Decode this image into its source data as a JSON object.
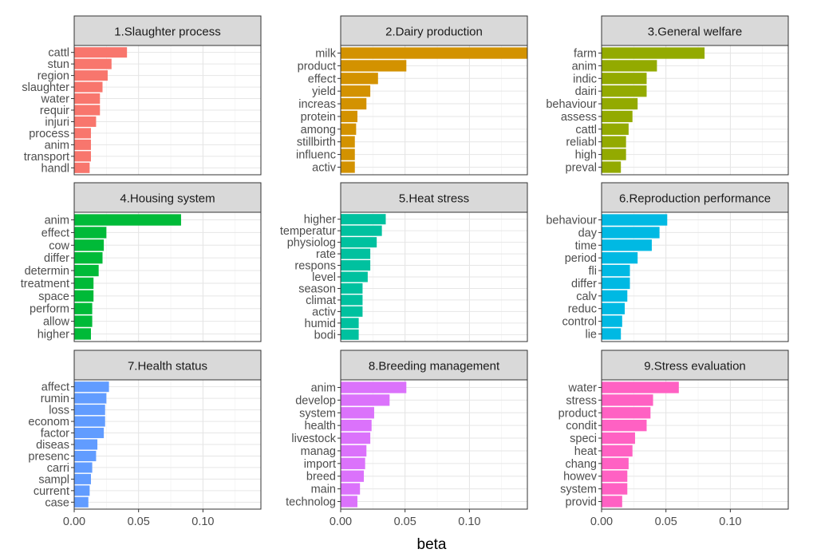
{
  "chart_data": {
    "type": "bar",
    "orientation": "horizontal",
    "layout": "facet-grid 3x3",
    "xlabel": "beta",
    "xlim": [
      0,
      0.145
    ],
    "xticks": [
      0,
      0.05,
      0.1
    ],
    "xtick_labels": [
      "0.00",
      "0.05",
      "0.10"
    ],
    "grid": true,
    "facets": [
      {
        "title": "1.Slaughter process",
        "color": "#F8766D",
        "terms": [
          "cattl",
          "stun",
          "region",
          "slaughter",
          "water",
          "requir",
          "injuri",
          "process",
          "anim",
          "transport",
          "handl"
        ],
        "values": [
          0.041,
          0.029,
          0.026,
          0.022,
          0.02,
          0.02,
          0.017,
          0.013,
          0.013,
          0.013,
          0.012
        ]
      },
      {
        "title": "2.Dairy production",
        "color": "#D39200",
        "terms": [
          "milk",
          "product",
          "effect",
          "yield",
          "increas",
          "protein",
          "among",
          "stillbirth",
          "influenc",
          "activ"
        ],
        "values": [
          0.145,
          0.051,
          0.029,
          0.023,
          0.02,
          0.013,
          0.012,
          0.011,
          0.011,
          0.011
        ]
      },
      {
        "title": "3.General welfare",
        "color": "#93AA00",
        "terms": [
          "farm",
          "anim",
          "indic",
          "dairi",
          "behaviour",
          "assess",
          "cattl",
          "reliabl",
          "high",
          "preval"
        ],
        "values": [
          0.08,
          0.043,
          0.035,
          0.035,
          0.028,
          0.024,
          0.021,
          0.019,
          0.019,
          0.015
        ]
      },
      {
        "title": "4.Housing system",
        "color": "#00BA38",
        "terms": [
          "anim",
          "effect",
          "cow",
          "differ",
          "determin",
          "treatment",
          "space",
          "perform",
          "allow",
          "higher"
        ],
        "values": [
          0.083,
          0.025,
          0.023,
          0.022,
          0.019,
          0.015,
          0.015,
          0.014,
          0.014,
          0.013
        ]
      },
      {
        "title": "5.Heat stress",
        "color": "#00C19F",
        "terms": [
          "higher",
          "temperatur",
          "physiolog",
          "rate",
          "respons",
          "level",
          "season",
          "climat",
          "activ",
          "humid",
          "bodi"
        ],
        "values": [
          0.035,
          0.032,
          0.028,
          0.023,
          0.023,
          0.021,
          0.017,
          0.017,
          0.017,
          0.014,
          0.014
        ]
      },
      {
        "title": "6.Reproduction performance",
        "color": "#00B9E3",
        "terms": [
          "behaviour",
          "day",
          "time",
          "period",
          "fli",
          "differ",
          "calv",
          "reduc",
          "control",
          "lie"
        ],
        "values": [
          0.051,
          0.045,
          0.039,
          0.028,
          0.022,
          0.022,
          0.02,
          0.018,
          0.016,
          0.015
        ]
      },
      {
        "title": "7.Health status",
        "color": "#619CFF",
        "terms": [
          "affect",
          "rumin",
          "loss",
          "econom",
          "factor",
          "diseas",
          "presenc",
          "carri",
          "sampl",
          "current",
          "case"
        ],
        "values": [
          0.027,
          0.025,
          0.024,
          0.024,
          0.023,
          0.018,
          0.017,
          0.014,
          0.013,
          0.012,
          0.011
        ]
      },
      {
        "title": "8.Breeding management",
        "color": "#DB72FB",
        "terms": [
          "anim",
          "develop",
          "system",
          "health",
          "livestock",
          "manag",
          "import",
          "breed",
          "main",
          "technolog"
        ],
        "values": [
          0.051,
          0.038,
          0.026,
          0.024,
          0.023,
          0.02,
          0.019,
          0.018,
          0.015,
          0.013
        ]
      },
      {
        "title": "9.Stress evaluation",
        "color": "#FF61C3",
        "terms": [
          "water",
          "stress",
          "product",
          "condit",
          "speci",
          "heat",
          "chang",
          "howev",
          "system",
          "provid"
        ],
        "values": [
          0.06,
          0.04,
          0.038,
          0.035,
          0.026,
          0.024,
          0.021,
          0.02,
          0.02,
          0.016
        ]
      }
    ]
  }
}
